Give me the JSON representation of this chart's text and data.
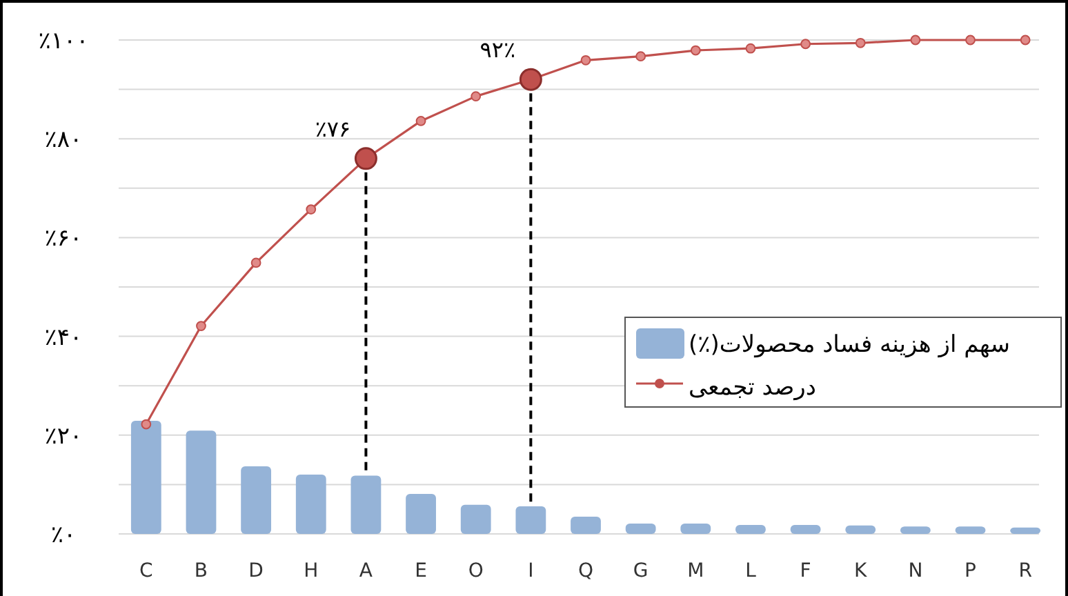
{
  "chart_data": {
    "type": "bar",
    "categories": [
      "C",
      "B",
      "D",
      "H",
      "A",
      "E",
      "O",
      "I",
      "Q",
      "G",
      "M",
      "L",
      "F",
      "K",
      "N",
      "P",
      "R"
    ],
    "series": [
      {
        "name": "سهم از هزینه فساد محصولات(٪)",
        "color": "#95b3d7",
        "values": [
          22.9,
          20.9,
          13.7,
          12.0,
          11.8,
          8.1,
          5.9,
          5.6,
          3.5,
          2.1,
          2.1,
          1.8,
          1.8,
          1.7,
          1.5,
          1.5,
          1.3
        ]
      },
      {
        "name": "درصد تجمعی",
        "type": "line",
        "color": "#c0504d",
        "marker": "circle",
        "values": [
          22.2,
          42.1,
          54.9,
          65.7,
          76,
          83.6,
          88.6,
          92,
          95.9,
          96.7,
          97.9,
          98.3,
          99.2,
          99.4,
          100,
          100,
          100
        ]
      }
    ],
    "ylim": [
      0,
      100
    ],
    "yticks": [
      {
        "value": 0,
        "label": "٪۰"
      },
      {
        "value": 10,
        "label": null
      },
      {
        "value": 20,
        "label": "٪۲۰"
      },
      {
        "value": 30,
        "label": null
      },
      {
        "value": 40,
        "label": "٪۴۰"
      },
      {
        "value": 50,
        "label": null
      },
      {
        "value": 60,
        "label": "٪۶۰"
      },
      {
        "value": 70,
        "label": null
      },
      {
        "value": 80,
        "label": "٪۸۰"
      },
      {
        "value": 90,
        "label": null
      },
      {
        "value": 100,
        "label": "٪۱۰۰"
      }
    ],
    "grid": "y",
    "ref_lines": [
      {
        "axis": "x",
        "value": "A",
        "color": "#000000",
        "line_style": "dashed"
      },
      {
        "axis": "x",
        "value": "I",
        "color": "#000000",
        "line_style": "dashed"
      }
    ],
    "legend": "right",
    "annotations": [
      {
        "text": "٪۷۶",
        "x": "A",
        "y": 76
      },
      {
        "text": "۹۲٪",
        "x": "I",
        "y": 92
      }
    ]
  }
}
